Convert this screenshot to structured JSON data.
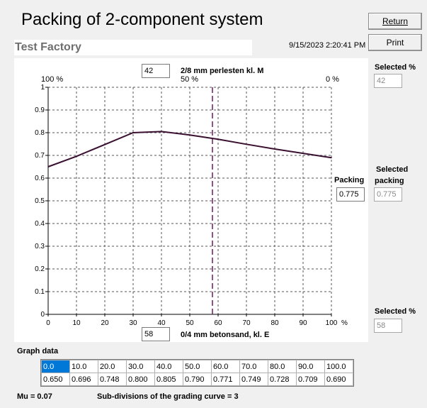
{
  "title": "Packing of 2-component system",
  "factory": "Test Factory",
  "datetime": "9/15/2023 2:20:41 PM",
  "buttons": {
    "return_label": "Return",
    "print_label": "Print"
  },
  "top_component": {
    "value": "42",
    "name": "2/8 mm perlesten kl. M",
    "left_pct": "100 %",
    "mid_pct": "50 %",
    "right_pct": "0 %"
  },
  "bottom_component": {
    "value": "58",
    "name": "0/4 mm betonsand, kl. E"
  },
  "packing": {
    "label": "Packing",
    "value": "0.775"
  },
  "selected": {
    "percent_label": "Selected %",
    "percent_value": "42",
    "packing_label_1": "Selected",
    "packing_label_2": "packing",
    "packing_value": "0.775",
    "percent2_label": "Selected %",
    "percent2_value": "58"
  },
  "graph_data_label": "Graph data",
  "table": {
    "row1": [
      "0.0",
      "10.0",
      "20.0",
      "30.0",
      "40.0",
      "50.0",
      "60.0",
      "70.0",
      "80.0",
      "90.0",
      "100.0"
    ],
    "row2": [
      "0.650",
      "0.696",
      "0.748",
      "0.800",
      "0.805",
      "0.790",
      "0.771",
      "0.749",
      "0.728",
      "0.709",
      "0.690"
    ]
  },
  "footer": {
    "mu": "Mu = 0.07",
    "subdiv": "Sub-divisions of the grading curve = 3"
  },
  "chart_data": {
    "type": "line",
    "x": [
      0,
      10,
      20,
      30,
      40,
      50,
      60,
      70,
      80,
      90,
      100
    ],
    "y": [
      0.65,
      0.696,
      0.748,
      0.8,
      0.805,
      0.79,
      0.771,
      0.749,
      0.728,
      0.709,
      0.69
    ],
    "xlim": [
      0,
      100
    ],
    "ylim": [
      0,
      1
    ],
    "x_ticks": [
      "0",
      "10",
      "20",
      "30",
      "40",
      "50",
      "60",
      "70",
      "80",
      "90",
      "100"
    ],
    "x_unit": "%",
    "y_ticks": [
      "0",
      "0.1",
      "0.2",
      "0.3",
      "0.4",
      "0.5",
      "0.6",
      "0.7",
      "0.8",
      "0.9",
      "1"
    ],
    "selected_x": 58,
    "grid": true,
    "line_color": "#3a1030",
    "marker_color": "#6a1a60"
  }
}
